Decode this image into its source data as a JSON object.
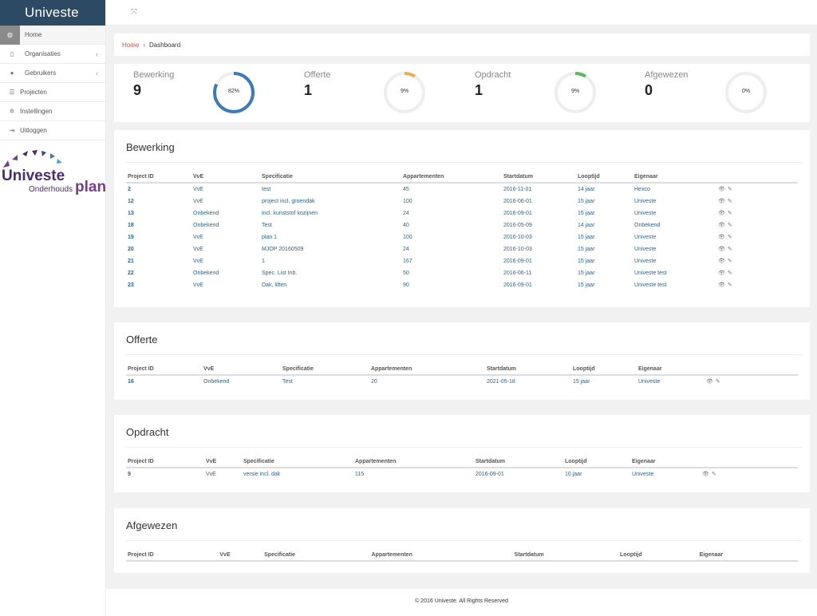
{
  "app": {
    "brand": "Univeste"
  },
  "sidebar": {
    "items": [
      {
        "label": "Home",
        "icon": "dashboard-icon"
      },
      {
        "label": "Organisaties",
        "icon": "building-icon"
      },
      {
        "label": "Gebruikers",
        "icon": "users-icon"
      },
      {
        "label": "Projecten",
        "icon": "list-icon"
      },
      {
        "label": "Instellingen",
        "icon": "gear-icon"
      },
      {
        "label": "Uitloggen",
        "icon": "logout-icon"
      }
    ],
    "logo": {
      "word": "Univeste",
      "sub": "Onderhouds",
      "plan": "plan"
    }
  },
  "breadcrumb": {
    "home": "Home",
    "separator": "›",
    "current": "Dashboard"
  },
  "stats": [
    {
      "label": "Bewerking",
      "value": "9",
      "percent_text": "82%",
      "percent": 82,
      "color": "#3a7bbf"
    },
    {
      "label": "Offerte",
      "value": "1",
      "percent_text": "9%",
      "percent": 9,
      "color": "#f0ad4e"
    },
    {
      "label": "Opdracht",
      "value": "1",
      "percent_text": "9%",
      "percent": 9,
      "color": "#5cb85c"
    },
    {
      "label": "Afgewezen",
      "value": "0",
      "percent_text": "0%",
      "percent": 0,
      "color": "#d9534f"
    }
  ],
  "columns": [
    "Project ID",
    "VvE",
    "Specificatie",
    "Appartementen",
    "Startdatum",
    "Looptijd",
    "Eigenaar"
  ],
  "sections": {
    "bewerking": {
      "title": "Bewerking",
      "rows": [
        [
          "2",
          "VvE",
          "test",
          "45",
          "2016-11-01",
          "14 jaar",
          "Hexco"
        ],
        [
          "12",
          "VvE",
          "project incl. groendak",
          "100",
          "2016-06-01",
          "15 jaar",
          "Univeste"
        ],
        [
          "13",
          "Onbekend",
          "incl. kunststof kozijnen",
          "24",
          "2016-09-01",
          "15 jaar",
          "Univeste"
        ],
        [
          "18",
          "Onbekend",
          "Test",
          "40",
          "2016-05-09",
          "14 jaar",
          "Onbekend"
        ],
        [
          "19",
          "VvE",
          "plan 1",
          "100",
          "2016-10-03",
          "15 jaar",
          "Univeste"
        ],
        [
          "20",
          "VvE",
          "MJOP 20160509",
          "24",
          "2016-10-03",
          "15 jaar",
          "Univeste"
        ],
        [
          "21",
          "VvE",
          "1",
          "167",
          "2016-09-01",
          "15 jaar",
          "Univeste"
        ],
        [
          "22",
          "Onbekend",
          "Spec. List Inb.",
          "50",
          "2016-06-11",
          "15 jaar",
          "Univeste test"
        ],
        [
          "23",
          "VvE",
          "Dak, liften",
          "90",
          "2016-09-01",
          "15 jaar",
          "Univeste test"
        ]
      ]
    },
    "offerte": {
      "title": "Offerte",
      "rows": [
        [
          "16",
          "Onbekend",
          "Test",
          "20",
          "2021-05-18",
          "15 jaar",
          "Univeste"
        ]
      ]
    },
    "opdracht": {
      "title": "Opdracht",
      "rows": [
        [
          "9",
          "VvE",
          "versie incl. dak",
          "115",
          "2016-09-01",
          "10 jaar",
          "Univeste"
        ]
      ]
    },
    "afgewezen": {
      "title": "Afgewezen",
      "rows": []
    }
  },
  "actions": {
    "view": "👁",
    "edit": "✎"
  },
  "footer": {
    "text": "© 2016 Univeste. All Rights Reserved"
  }
}
